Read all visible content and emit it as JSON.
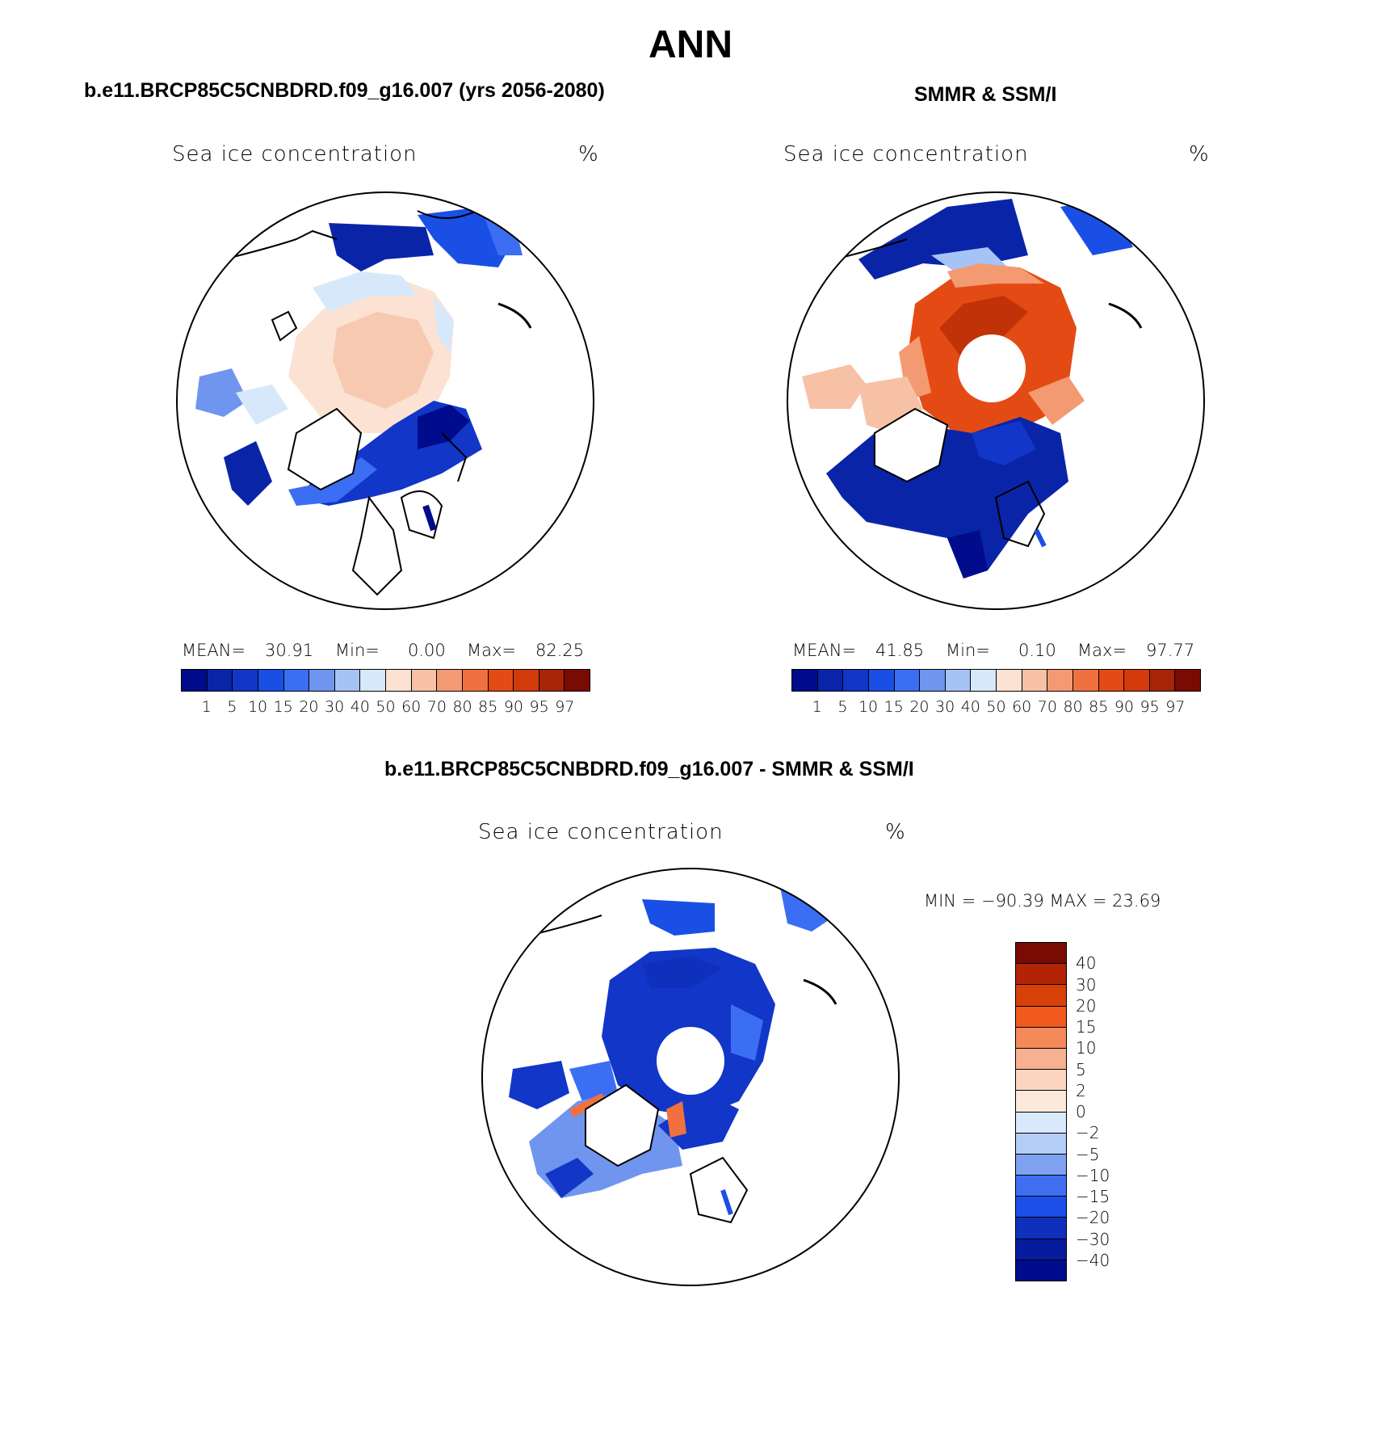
{
  "title": "ANN",
  "panels": {
    "model": {
      "title": "b.e11.BRCP85C5CNBDRD.f09_g16.007 (yrs 2056-2080)",
      "label": "Sea ice concentration",
      "units": "%",
      "mean_label": "MEAN=",
      "mean": "30.91",
      "min_label": "Min=",
      "min": "0.00",
      "max_label": "Max=",
      "max": "82.25"
    },
    "obs": {
      "title": "SMMR & SSM/I",
      "label": "Sea ice concentration",
      "units": "%",
      "mean_label": "MEAN=",
      "mean": "41.85",
      "min_label": "Min=",
      "min": "0.10",
      "max_label": "Max=",
      "max": "97.77"
    },
    "diff": {
      "title": "b.e11.BRCP85C5CNBDRD.f09_g16.007 - SMMR & SSM/I",
      "label": "Sea ice concentration",
      "units": "%",
      "minmax_text": "MIN = −90.39 MAX =   23.69"
    }
  },
  "colorbar_levels": [
    "1",
    "5",
    "10",
    "15",
    "20",
    "30",
    "40",
    "50",
    "60",
    "70",
    "80",
    "85",
    "90",
    "95",
    "97"
  ],
  "colorbar_colors": [
    "#000c8b",
    "#0a24a8",
    "#1236c8",
    "#1a4fe6",
    "#3b6ef2",
    "#6f95ef",
    "#a6c3f5",
    "#d8e8fb",
    "#fbe2d2",
    "#f7c1a6",
    "#f39a72",
    "#f0713f",
    "#e44b14",
    "#d23a0c",
    "#a82408",
    "#7a0a04"
  ],
  "diff_levels": [
    "40",
    "30",
    "20",
    "15",
    "10",
    "5",
    "2",
    "0",
    "−2",
    "−5",
    "−10",
    "−15",
    "−20",
    "−30",
    "−40"
  ],
  "diff_colors": [
    "#7a0a04",
    "#b32306",
    "#d8400a",
    "#f05a1d",
    "#f4895a",
    "#f7b190",
    "#fcd5c0",
    "#fbeadc",
    "#dae8fb",
    "#b3cdf6",
    "#7ea2f0",
    "#3f6ef0",
    "#1c4fe8",
    "#0e30bd",
    "#071b9e",
    "#000c8b"
  ],
  "map_colors": {
    "land": "#ffffff",
    "coast": "#000000",
    "model_ice_low": "#fbe2d2",
    "model_ice_mid": "#f7c9b0",
    "model_ice_edge": "#a6c3f5",
    "obs_ice_high": "#e44b14",
    "obs_ice_core": "#c23208",
    "obs_ice_mid": "#f39a72",
    "blue_deep": "#000c8b",
    "blue_mid": "#1236c8",
    "blue_light": "#6f95ef",
    "diff_blue": "#1236c8",
    "diff_blue_light": "#3b6ef2",
    "diff_red": "#f0713f"
  }
}
